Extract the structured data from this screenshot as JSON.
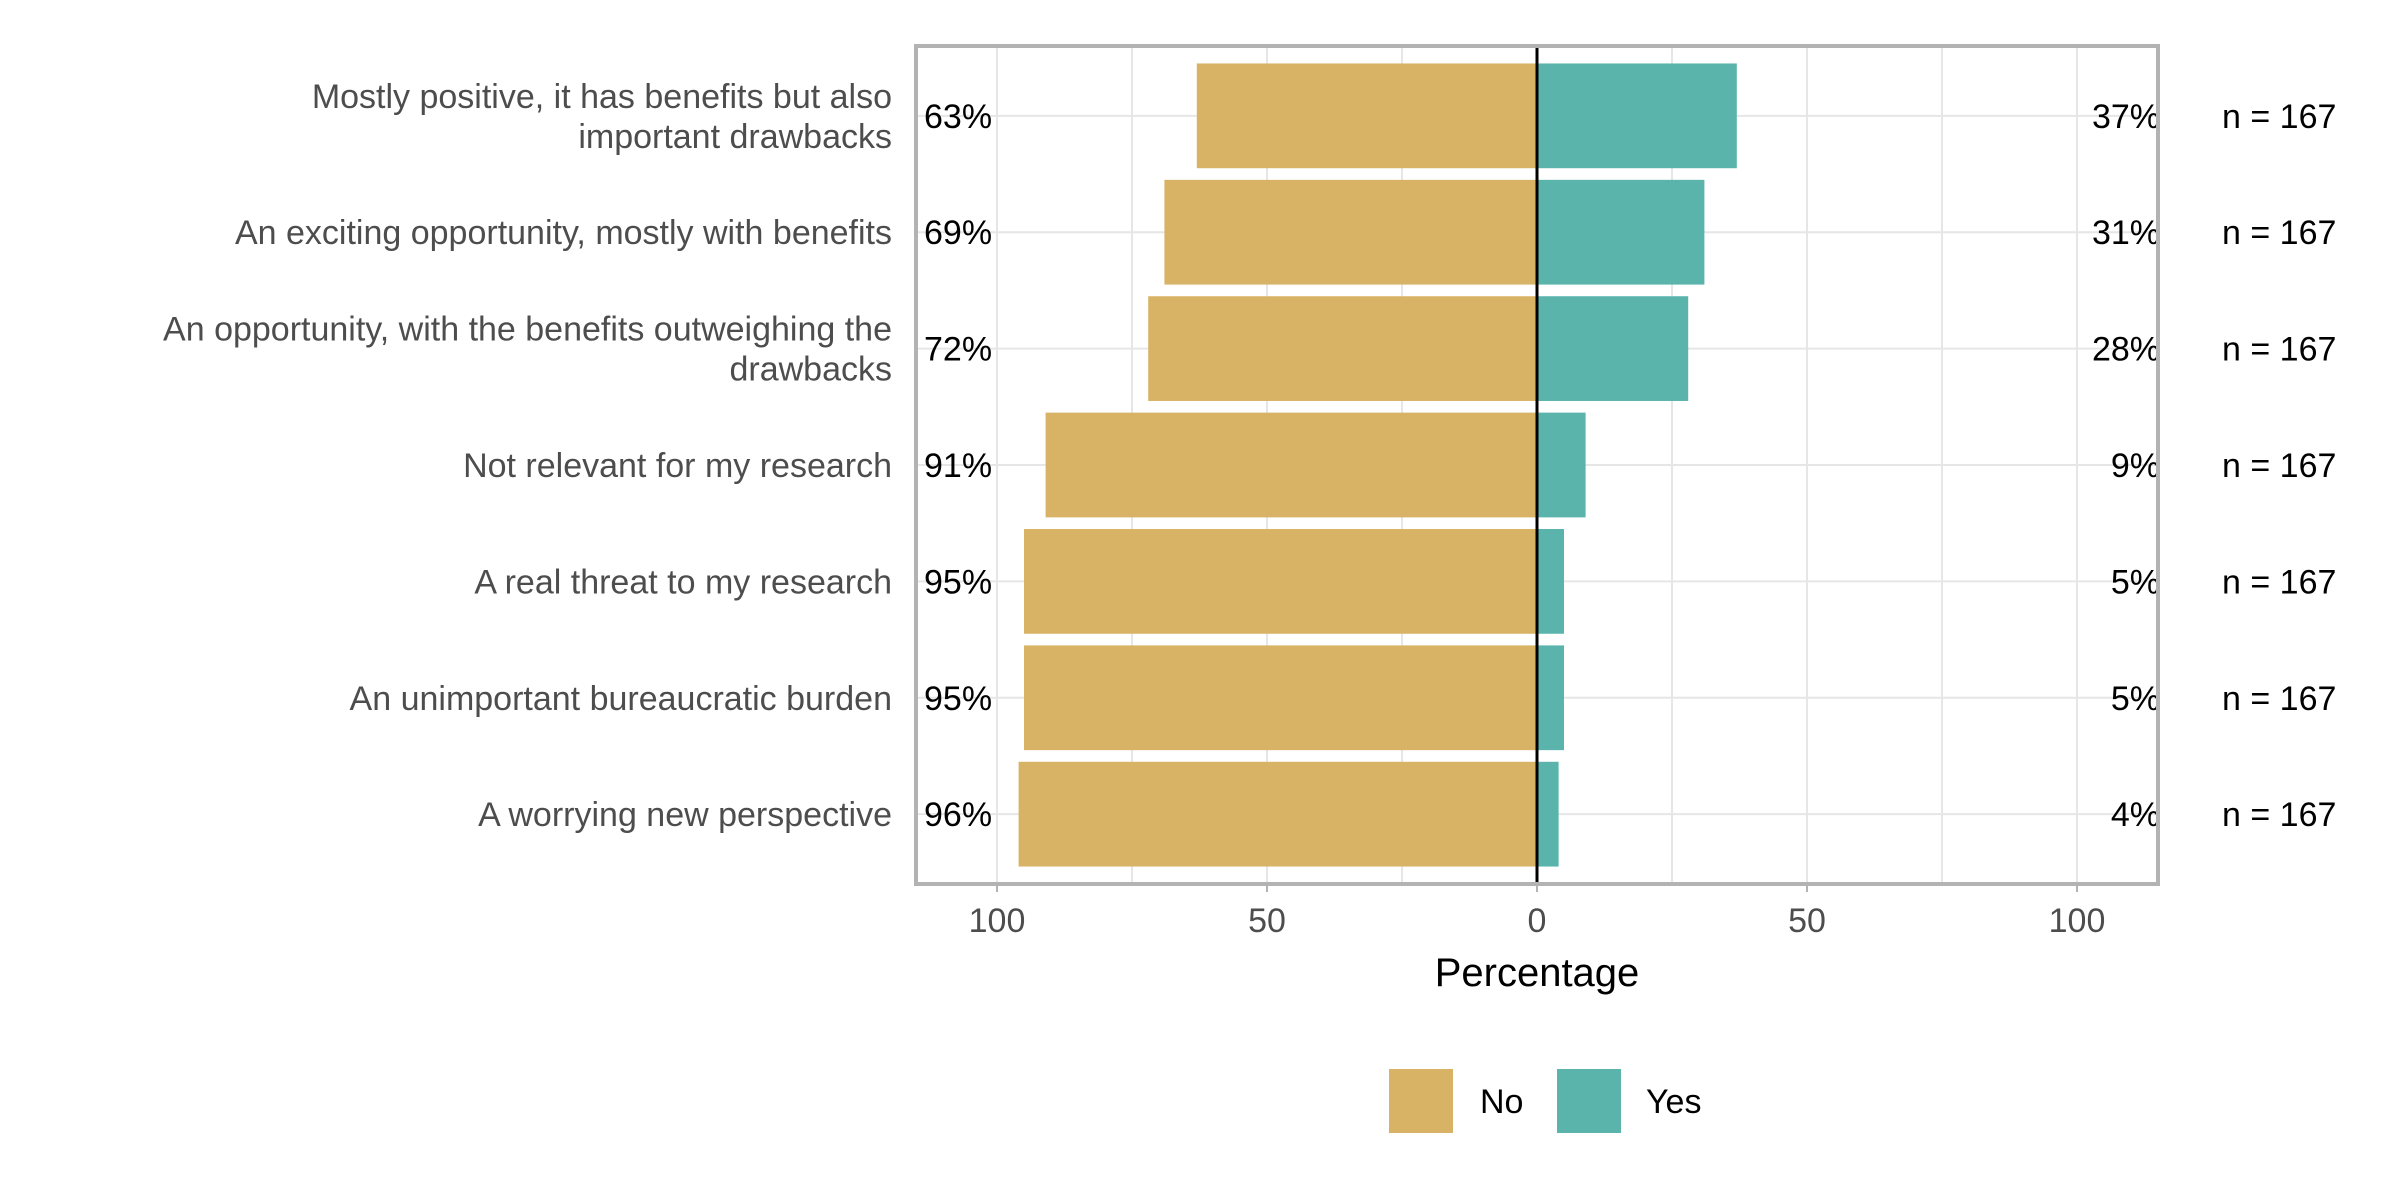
{
  "chart_data": {
    "type": "bar",
    "orientation": "horizontal-diverging",
    "categories": [
      [
        "Mostly positive, it has benefits but also",
        "important drawbacks"
      ],
      [
        "An exciting opportunity, mostly with benefits"
      ],
      [
        "An opportunity, with the benefits outweighing the",
        "drawbacks"
      ],
      [
        "Not relevant for my research"
      ],
      [
        "A real threat to my research"
      ],
      [
        "An unimportant bureaucratic burden"
      ],
      [
        "A worrying new perspective"
      ]
    ],
    "series": [
      {
        "name": "No",
        "color": "#d8b365",
        "values": [
          63,
          69,
          72,
          91,
          95,
          95,
          96
        ],
        "labels": [
          "63%",
          "69%",
          "72%",
          "91%",
          "95%",
          "95%",
          "96%"
        ]
      },
      {
        "name": "Yes",
        "color": "#5ab4ac",
        "values": [
          37,
          31,
          28,
          9,
          5,
          5,
          4
        ],
        "labels": [
          "37%",
          "31%",
          "28%",
          "9%",
          "5%",
          "5%",
          "4%"
        ]
      }
    ],
    "n_labels": [
      "n = 167",
      "n = 167",
      "n = 167",
      "n = 167",
      "n = 167",
      "n = 167",
      "n = 167"
    ],
    "xlabel": "Percentage",
    "ylabel": "",
    "xlim": [
      -115,
      115
    ],
    "x_ticks": [
      -100,
      -50,
      0,
      50,
      100
    ],
    "x_tick_labels": [
      "100",
      "50",
      "0",
      "50",
      "100"
    ],
    "legend": {
      "position": "bottom",
      "items": [
        "No",
        "Yes"
      ]
    },
    "grid": true
  }
}
